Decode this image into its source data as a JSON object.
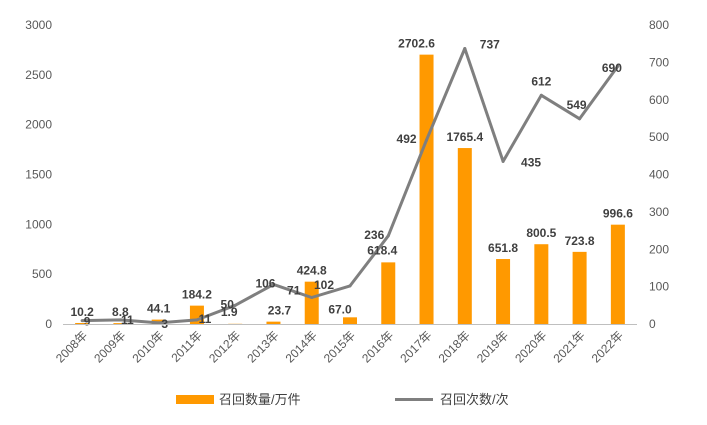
{
  "chart_data": {
    "type": "bar+line",
    "categories": [
      "2008年",
      "2009年",
      "2010年",
      "2011年",
      "2012年",
      "2013年",
      "2014年",
      "2015年",
      "2016年",
      "2017年",
      "2018年",
      "2019年",
      "2020年",
      "2021年",
      "2022年"
    ],
    "series": [
      {
        "name": "召回数量/万件",
        "type": "bar",
        "axis": "left",
        "color": "#FF9900",
        "values": [
          10.2,
          8.8,
          44.1,
          184.2,
          1.9,
          23.7,
          424.8,
          67.0,
          618.4,
          2702.6,
          1765.4,
          651.8,
          800.5,
          723.8,
          996.6
        ],
        "labels": [
          "10.2",
          "8.8",
          "44.1",
          "184.2",
          "1.9",
          "23.7",
          "424.8",
          "67.0",
          "618.4",
          "2702.6",
          "1765.4",
          "651.8",
          "800.5",
          "723.8",
          "996.6"
        ]
      },
      {
        "name": "召回次数/次",
        "type": "line",
        "axis": "right",
        "color": "#7F7F7F",
        "values": [
          9,
          11,
          3,
          11,
          50,
          106,
          71,
          102,
          236,
          492,
          737,
          435,
          612,
          549,
          690
        ],
        "labels": [
          "9",
          "11",
          "3",
          "11",
          "50",
          "106",
          "71",
          "102",
          "236",
          "492",
          "737",
          "435",
          "612",
          "549",
          "690"
        ]
      }
    ],
    "y_left": {
      "min": 0,
      "max": 3000,
      "ticks": [
        "0",
        "500",
        "1000",
        "1500",
        "2000",
        "2500",
        "3000"
      ]
    },
    "y_right": {
      "min": 0,
      "max": 800,
      "ticks": [
        "0",
        "100",
        "200",
        "300",
        "400",
        "500",
        "600",
        "700",
        "800"
      ]
    },
    "grid": false,
    "legend": "bottom"
  }
}
